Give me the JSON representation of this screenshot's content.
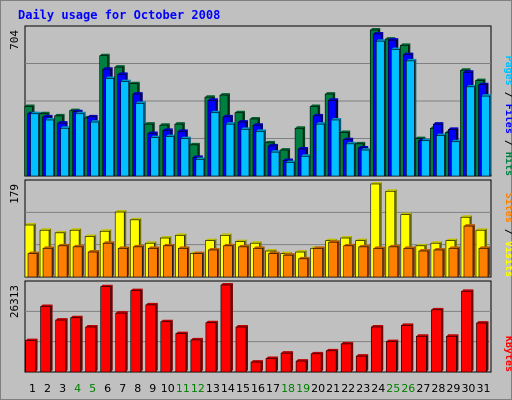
{
  "chart_data": {
    "type": "bar",
    "title": "Daily usage for October 2008",
    "days": [
      1,
      2,
      3,
      4,
      5,
      6,
      7,
      8,
      9,
      10,
      11,
      12,
      13,
      14,
      15,
      16,
      17,
      18,
      19,
      20,
      21,
      22,
      23,
      24,
      25,
      26,
      27,
      28,
      29,
      30,
      31
    ],
    "weekend_days": [
      4,
      5,
      11,
      12,
      18,
      19,
      25,
      26
    ],
    "panels": {
      "hits_files_pages": {
        "max_label": "704",
        "ylim": [
          0,
          704
        ],
        "labels": [
          "Pages",
          "Files",
          "Hits"
        ],
        "series": [
          {
            "name": "Hits",
            "color": "#008040",
            "values": [
              335,
              300,
              290,
              315,
              280,
              580,
              525,
              445,
              250,
              245,
              250,
              150,
              380,
              390,
              305,
              275,
              160,
              125,
              230,
              335,
              395,
              210,
              155,
              704,
              660,
              630,
              180,
              230,
              210,
              510,
              460
            ]
          },
          {
            "name": "Files",
            "color": "#0000ff",
            "values": [
              300,
              285,
              255,
              310,
              285,
              515,
              490,
              395,
              205,
              220,
              215,
              90,
              365,
              285,
              260,
              245,
              145,
              75,
              130,
              290,
              365,
              175,
              135,
              685,
              655,
              585,
              170,
              250,
              225,
              500,
              440
            ]
          },
          {
            "name": "Pages",
            "color": "#00c0ff",
            "values": [
              300,
              270,
              230,
              300,
              260,
              470,
              455,
              350,
              185,
              190,
              180,
              80,
              305,
              250,
              225,
              215,
              115,
              65,
              95,
              250,
              270,
              155,
              125,
              650,
              610,
              555,
              170,
              195,
              165,
              430,
              385
            ]
          }
        ]
      },
      "visits_sites": {
        "max_label": "179",
        "ylim": [
          0,
          179
        ],
        "labels": [
          "Sites",
          "Visits"
        ],
        "series": [
          {
            "name": "Visits",
            "color": "#ffff00",
            "values": [
              100,
              90,
              85,
              90,
              78,
              88,
              125,
              110,
              65,
              75,
              80,
              45,
              70,
              80,
              68,
              65,
              50,
              45,
              48,
              55,
              70,
              75,
              70,
              179,
              165,
              120,
              60,
              65,
              70,
              115,
              90
            ]
          },
          {
            "name": "Sites",
            "color": "#ff8000",
            "values": [
              45,
              55,
              60,
              58,
              48,
              65,
              55,
              58,
              55,
              60,
              55,
              45,
              52,
              60,
              58,
              55,
              45,
              42,
              35,
              55,
              67,
              60,
              58,
              55,
              58,
              55,
              50,
              52,
              55,
              98,
              55
            ]
          }
        ]
      },
      "kbytes": {
        "max_label": "26313",
        "ylim": [
          0,
          26313
        ],
        "labels": [
          "KBytes"
        ],
        "series": [
          {
            "name": "KBytes",
            "color": "#ff0000",
            "values": [
              9500,
              19800,
              15700,
              16400,
              13600,
              25800,
              17800,
              24600,
              20300,
              15200,
              11600,
              9700,
              14900,
              26313,
              13600,
              3000,
              4100,
              5700,
              3300,
              5500,
              6400,
              8500,
              4800,
              13600,
              9200,
              14100,
              10800,
              18800,
              10800,
              24400,
              14800
            ]
          }
        ]
      }
    },
    "legend_separator": " / ",
    "background_color": "#c0c0c0",
    "gridline_color": "#808080",
    "title_color": "#0000ff",
    "weekday_label_color": "#000000",
    "weekend_label_color": "#008000"
  }
}
